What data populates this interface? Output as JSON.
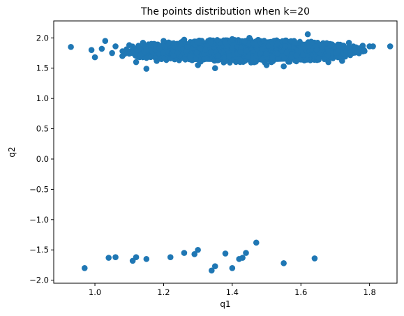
{
  "chart_data": {
    "type": "scatter",
    "title": "The points distribution when k=20",
    "xlabel": "q1",
    "ylabel": "q2",
    "xlim": [
      0.88,
      1.88
    ],
    "ylim": [
      -2.05,
      2.28
    ],
    "xticks": [
      1.0,
      1.2,
      1.4,
      1.6,
      1.8
    ],
    "xtick_labels": [
      "1.0",
      "1.2",
      "1.4",
      "1.6",
      "1.8"
    ],
    "yticks": [
      -2.0,
      -1.5,
      -1.0,
      -0.5,
      0.0,
      0.5,
      1.0,
      1.5,
      2.0
    ],
    "ytick_labels": [
      "−2.0",
      "−1.5",
      "−1.0",
      "−0.5",
      "0.0",
      "0.5",
      "1.0",
      "1.5",
      "2.0"
    ],
    "grid": false,
    "marker_color": "#1f77b4",
    "cluster_upper": {
      "x_range": [
        1.09,
        1.77
      ],
      "y_range": [
        1.6,
        1.97
      ],
      "center": [
        1.43,
        1.78
      ]
    },
    "points": [
      [
        0.93,
        1.85
      ],
      [
        0.99,
        1.8
      ],
      [
        1.0,
        1.68
      ],
      [
        1.02,
        1.82
      ],
      [
        1.03,
        1.95
      ],
      [
        1.05,
        1.75
      ],
      [
        1.06,
        1.86
      ],
      [
        1.08,
        1.7
      ],
      [
        1.1,
        1.88
      ],
      [
        1.12,
        1.6
      ],
      [
        1.14,
        1.92
      ],
      [
        1.15,
        1.49
      ],
      [
        1.18,
        1.62
      ],
      [
        1.2,
        1.95
      ],
      [
        1.26,
        1.97
      ],
      [
        1.3,
        1.55
      ],
      [
        1.35,
        1.5
      ],
      [
        1.4,
        1.98
      ],
      [
        1.45,
        2.0
      ],
      [
        1.5,
        1.55
      ],
      [
        1.55,
        1.53
      ],
      [
        1.62,
        2.06
      ],
      [
        1.68,
        1.6
      ],
      [
        1.72,
        1.62
      ],
      [
        1.74,
        1.92
      ],
      [
        1.76,
        1.84
      ],
      [
        1.78,
        1.87
      ],
      [
        1.8,
        1.86
      ],
      [
        1.81,
        1.86
      ],
      [
        1.86,
        1.86
      ],
      [
        0.97,
        -1.8
      ],
      [
        1.04,
        -1.63
      ],
      [
        1.06,
        -1.62
      ],
      [
        1.11,
        -1.68
      ],
      [
        1.12,
        -1.62
      ],
      [
        1.15,
        -1.65
      ],
      [
        1.22,
        -1.62
      ],
      [
        1.26,
        -1.55
      ],
      [
        1.29,
        -1.57
      ],
      [
        1.3,
        -1.5
      ],
      [
        1.34,
        -1.84
      ],
      [
        1.35,
        -1.77
      ],
      [
        1.38,
        -1.56
      ],
      [
        1.4,
        -1.8
      ],
      [
        1.42,
        -1.65
      ],
      [
        1.43,
        -1.63
      ],
      [
        1.44,
        -1.55
      ],
      [
        1.47,
        -1.38
      ],
      [
        1.55,
        -1.72
      ],
      [
        1.64,
        -1.64
      ]
    ]
  }
}
